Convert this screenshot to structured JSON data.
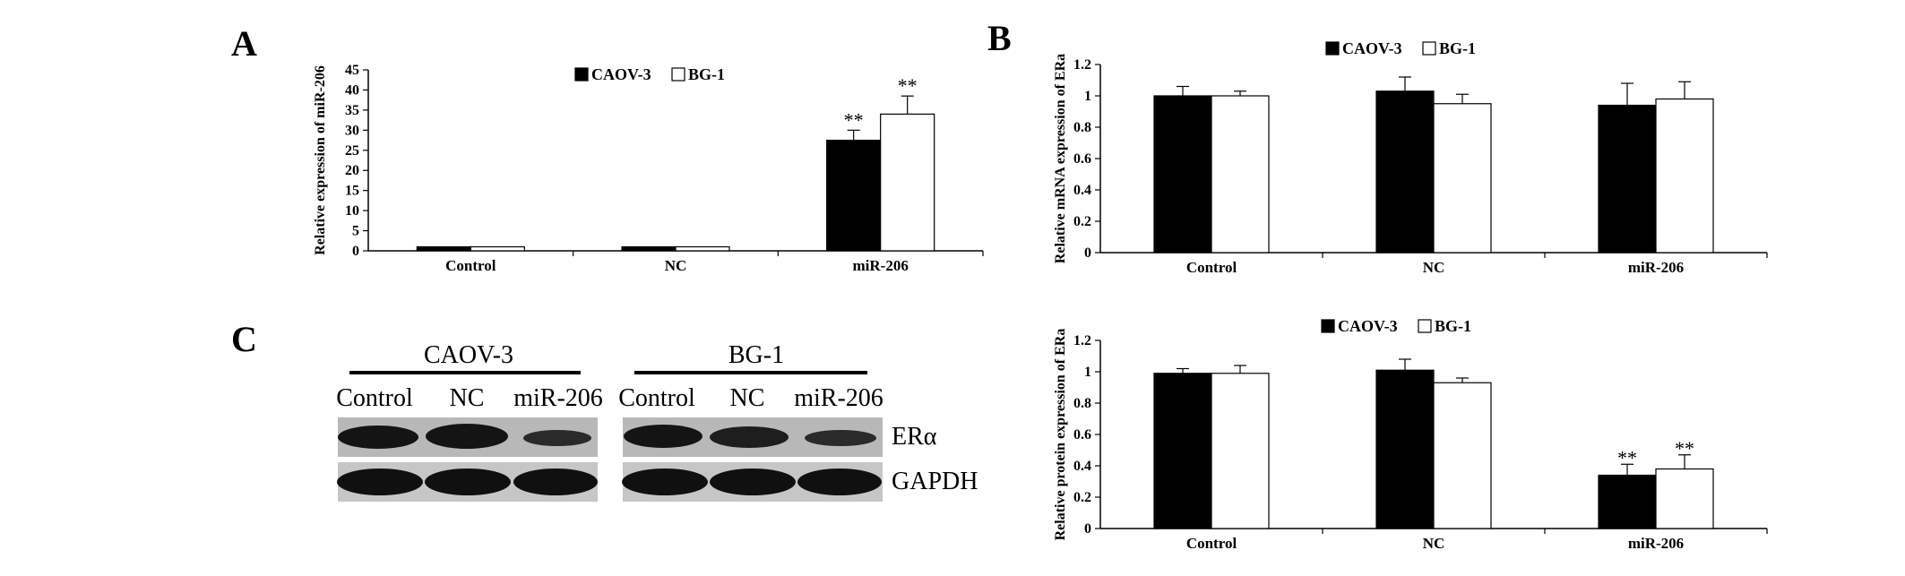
{
  "panels": {
    "A": "A",
    "B": "B",
    "C": "C"
  },
  "chart_data": [
    {
      "id": "chartA",
      "type": "bar",
      "categories": [
        "Control",
        "NC",
        "miR-206"
      ],
      "series": [
        {
          "name": "CAOV-3",
          "values": [
            1,
            1,
            27.5
          ],
          "errors": [
            0,
            0,
            2.5
          ],
          "color": "#000000"
        },
        {
          "name": "BG-1",
          "values": [
            1,
            1,
            34
          ],
          "errors": [
            0,
            0,
            4.5
          ],
          "color": "#ffffff"
        }
      ],
      "significance": [
        [
          "",
          "",
          "**"
        ],
        [
          "",
          "",
          "**"
        ]
      ],
      "ylabel": "Relative expression of miR-206",
      "ylim": [
        0,
        45
      ],
      "yticks": [
        "0",
        "5",
        "10",
        "15",
        "20",
        "25",
        "30",
        "35",
        "40",
        "45"
      ],
      "legend": "top-right"
    },
    {
      "id": "chartB1",
      "type": "bar",
      "categories": [
        "Control",
        "NC",
        "miR-206"
      ],
      "series": [
        {
          "name": "CAOV-3",
          "values": [
            1.0,
            1.03,
            0.94
          ],
          "errors": [
            0.06,
            0.09,
            0.14
          ],
          "color": "#000000"
        },
        {
          "name": "BG-1",
          "values": [
            1.0,
            0.95,
            0.98
          ],
          "errors": [
            0.03,
            0.06,
            0.11
          ],
          "color": "#ffffff"
        }
      ],
      "significance": [
        [
          "",
          "",
          ""
        ],
        [
          "",
          "",
          ""
        ]
      ],
      "ylabel": "Relative mRNA expression of ERa",
      "ylim": [
        0,
        1.2
      ],
      "yticks": [
        "0",
        "0.2",
        "0.4",
        "0.6",
        "0.8",
        "1",
        "1.2"
      ],
      "legend": "top-center"
    },
    {
      "id": "chartB2",
      "type": "bar",
      "categories": [
        "Control",
        "NC",
        "miR-206"
      ],
      "series": [
        {
          "name": "CAOV-3",
          "values": [
            0.99,
            1.01,
            0.34
          ],
          "errors": [
            0.03,
            0.07,
            0.07
          ],
          "color": "#000000"
        },
        {
          "name": "BG-1",
          "values": [
            0.99,
            0.93,
            0.38
          ],
          "errors": [
            0.05,
            0.03,
            0.09
          ],
          "color": "#ffffff"
        }
      ],
      "significance": [
        [
          "",
          "",
          "**"
        ],
        [
          "",
          "",
          "**"
        ]
      ],
      "ylabel": "Relative protein expression of ERa",
      "ylim": [
        0,
        1.2
      ],
      "yticks": [
        "0",
        "0.2",
        "0.4",
        "0.6",
        "0.8",
        "1",
        "1.2"
      ],
      "legend": "top-center"
    }
  ],
  "blot": {
    "groups": [
      "CAOV-3",
      "BG-1"
    ],
    "lanes": [
      [
        "Control",
        "NC",
        "miR-206"
      ],
      [
        "Control",
        "NC",
        "miR-206"
      ]
    ],
    "rows": [
      "ERα",
      "GAPDH"
    ],
    "intensities": {
      "ERα": [
        [
          0.95,
          1.0,
          0.6
        ],
        [
          0.95,
          0.85,
          0.6
        ]
      ],
      "GAPDH": [
        [
          1.0,
          1.0,
          1.0
        ],
        [
          1.0,
          1.0,
          1.0
        ]
      ]
    }
  }
}
